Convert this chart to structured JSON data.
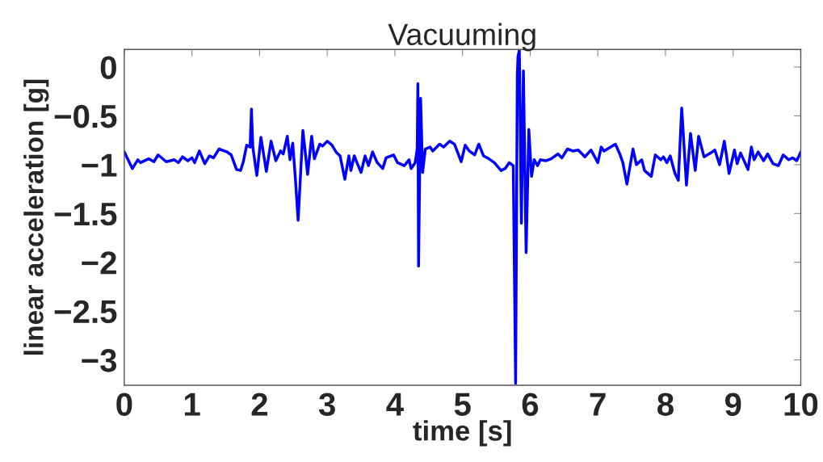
{
  "chart_data": {
    "type": "line",
    "title": "Vacuuming",
    "xlabel": "time [s]",
    "ylabel": "linear acceleration [g]",
    "xlim": [
      0,
      10
    ],
    "xticks": [
      0,
      1,
      2,
      3,
      4,
      5,
      6,
      7,
      8,
      9,
      10
    ],
    "ylim": [
      -3.26,
      0.18
    ],
    "yticks": [
      {
        "value": -3,
        "label": "−3"
      },
      {
        "value": -2.5,
        "label": "−2.5"
      },
      {
        "value": -2,
        "label": "−2"
      },
      {
        "value": -1.5,
        "label": "−1.5"
      },
      {
        "value": -1,
        "label": "−1"
      },
      {
        "value": -0.5,
        "label": "−0.5"
      },
      0
    ],
    "grid": false,
    "legend": false,
    "marker": "none",
    "line_style": "solid",
    "series": [
      {
        "color": "#0000ff",
        "x": [
          0,
          0.12,
          0.2,
          0.24,
          0.36,
          0.44,
          0.5,
          0.62,
          0.74,
          0.8,
          0.86,
          0.94,
          1.0,
          1.04,
          1.11,
          1.19,
          1.26,
          1.32,
          1.4,
          1.52,
          1.58,
          1.66,
          1.72,
          1.76,
          1.81,
          1.86,
          1.88,
          1.9,
          1.96,
          2.02,
          2.1,
          2.17,
          2.24,
          2.31,
          2.35,
          2.41,
          2.45,
          2.49,
          2.53,
          2.57,
          2.64,
          2.67,
          2.71,
          2.77,
          2.81,
          2.89,
          2.93,
          3.0,
          3.07,
          3.13,
          3.19,
          3.26,
          3.32,
          3.35,
          3.4,
          3.44,
          3.5,
          3.56,
          3.61,
          3.67,
          3.74,
          3.82,
          3.87,
          3.98,
          4.04,
          4.14,
          4.21,
          4.24,
          4.3,
          4.33,
          4.34,
          4.35,
          4.38,
          4.41,
          4.45,
          4.52,
          4.56,
          4.66,
          4.72,
          4.81,
          4.88,
          4.92,
          4.98,
          5.04,
          5.1,
          5.18,
          5.24,
          5.31,
          5.39,
          5.47,
          5.57,
          5.63,
          5.69,
          5.75,
          5.785,
          5.81,
          5.82,
          5.84,
          5.87,
          5.9,
          5.94,
          5.98,
          6.02,
          6.06,
          6.11,
          6.15,
          6.23,
          6.31,
          6.41,
          6.47,
          6.55,
          6.63,
          6.71,
          6.81,
          6.9,
          7.0,
          7.05,
          7.09,
          7.19,
          7.26,
          7.33,
          7.37,
          7.43,
          7.52,
          7.57,
          7.65,
          7.69,
          7.79,
          7.85,
          7.93,
          7.97,
          8.02,
          8.07,
          8.14,
          8.19,
          8.24,
          8.31,
          8.37,
          8.44,
          8.49,
          8.57,
          8.67,
          8.73,
          8.8,
          8.87,
          8.94,
          9.02,
          9.06,
          9.11,
          9.22,
          9.27,
          9.31,
          9.37,
          9.45,
          9.51,
          9.59,
          9.67,
          9.74,
          9.82,
          9.88,
          9.94,
          10.0
        ],
        "values": [
          -0.87,
          -1.04,
          -0.95,
          -0.98,
          -0.94,
          -0.97,
          -0.9,
          -0.97,
          -0.95,
          -0.98,
          -0.92,
          -0.96,
          -0.93,
          -0.98,
          -0.86,
          -0.99,
          -0.91,
          -0.93,
          -0.84,
          -0.87,
          -0.9,
          -1.05,
          -1.06,
          -0.97,
          -0.8,
          -0.82,
          -0.43,
          -0.82,
          -1.11,
          -0.72,
          -1.07,
          -0.76,
          -0.96,
          -0.86,
          -0.89,
          -0.71,
          -0.95,
          -0.78,
          -1.15,
          -1.57,
          -0.65,
          -0.84,
          -1.1,
          -0.71,
          -0.94,
          -0.79,
          -0.81,
          -0.76,
          -0.8,
          -0.87,
          -0.91,
          -1.15,
          -0.91,
          -1.06,
          -0.91,
          -0.98,
          -1.08,
          -0.91,
          -1.01,
          -0.87,
          -0.98,
          -1.04,
          -0.93,
          -0.9,
          -0.98,
          -1.01,
          -0.95,
          -1.04,
          -0.98,
          -0.84,
          -0.17,
          -2.04,
          -0.32,
          -1.08,
          -0.84,
          -0.82,
          -0.86,
          -0.79,
          -0.82,
          -0.76,
          -0.79,
          -0.86,
          -0.97,
          -0.8,
          -0.86,
          -0.9,
          -0.79,
          -0.91,
          -0.94,
          -0.98,
          -1.06,
          -1.04,
          -0.98,
          -1.01,
          -3.24,
          -0.08,
          0.11,
          0.17,
          -1.6,
          -0.04,
          -1.9,
          -0.64,
          -1.12,
          -0.95,
          -1.01,
          -0.95,
          -0.96,
          -0.94,
          -0.89,
          -0.93,
          -0.84,
          -0.86,
          -0.85,
          -0.92,
          -0.85,
          -0.98,
          -0.82,
          -0.86,
          -0.82,
          -0.79,
          -0.9,
          -0.98,
          -1.2,
          -0.84,
          -1.0,
          -0.95,
          -1.06,
          -1.12,
          -0.9,
          -0.95,
          -0.92,
          -0.98,
          -0.91,
          -1.09,
          -1.16,
          -0.42,
          -1.21,
          -0.68,
          -1.06,
          -0.71,
          -0.92,
          -0.88,
          -0.85,
          -1.0,
          -0.76,
          -1.09,
          -0.85,
          -0.99,
          -0.88,
          -1.05,
          -0.82,
          -0.95,
          -0.87,
          -0.96,
          -0.89,
          -0.99,
          -1.01,
          -0.9,
          -0.95,
          -0.93,
          -0.96,
          -0.87
        ]
      }
    ]
  }
}
